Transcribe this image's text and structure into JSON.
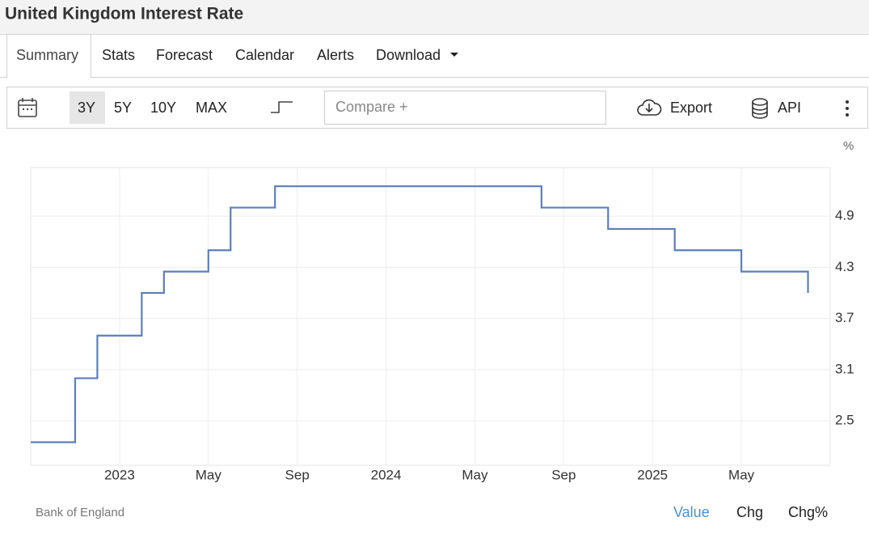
{
  "header": {
    "title": "United Kingdom Interest Rate"
  },
  "tabs": [
    "Summary",
    "Stats",
    "Forecast",
    "Calendar",
    "Alerts",
    "Download"
  ],
  "toolbar": {
    "ranges": [
      "3Y",
      "5Y",
      "10Y",
      "MAX"
    ],
    "compare": "Compare +",
    "export": "Export",
    "api": "API"
  },
  "chart_data": {
    "type": "step",
    "unit": "%",
    "source": "Bank of England",
    "x": [
      "2022-09",
      "2022-11",
      "2022-12",
      "2023-02",
      "2023-03",
      "2023-05",
      "2023-06",
      "2023-08",
      "2024-08",
      "2024-11",
      "2025-02",
      "2025-05",
      "2025-08"
    ],
    "values": [
      2.25,
      3.0,
      3.5,
      4.0,
      4.25,
      4.5,
      5.0,
      5.25,
      5.0,
      4.75,
      4.5,
      4.25,
      4.0
    ],
    "color": "#5b7fbd",
    "xlim": [
      "2022-09",
      "2025-09"
    ],
    "xticks": [
      {
        "value": "2023-01",
        "label": "2023"
      },
      {
        "value": "2023-05",
        "label": "May"
      },
      {
        "value": "2023-09",
        "label": "Sep"
      },
      {
        "value": "2024-01",
        "label": "2024"
      },
      {
        "value": "2024-05",
        "label": "May"
      },
      {
        "value": "2024-09",
        "label": "Sep"
      },
      {
        "value": "2025-01",
        "label": "2025"
      },
      {
        "value": "2025-05",
        "label": "May"
      }
    ],
    "ylim": [
      1.98,
      5.47
    ],
    "yticks": [
      2.5,
      3.1,
      3.7,
      4.3,
      4.9
    ],
    "grid": true
  },
  "footer": {
    "views": [
      "Value",
      "Chg",
      "Chg%"
    ]
  }
}
